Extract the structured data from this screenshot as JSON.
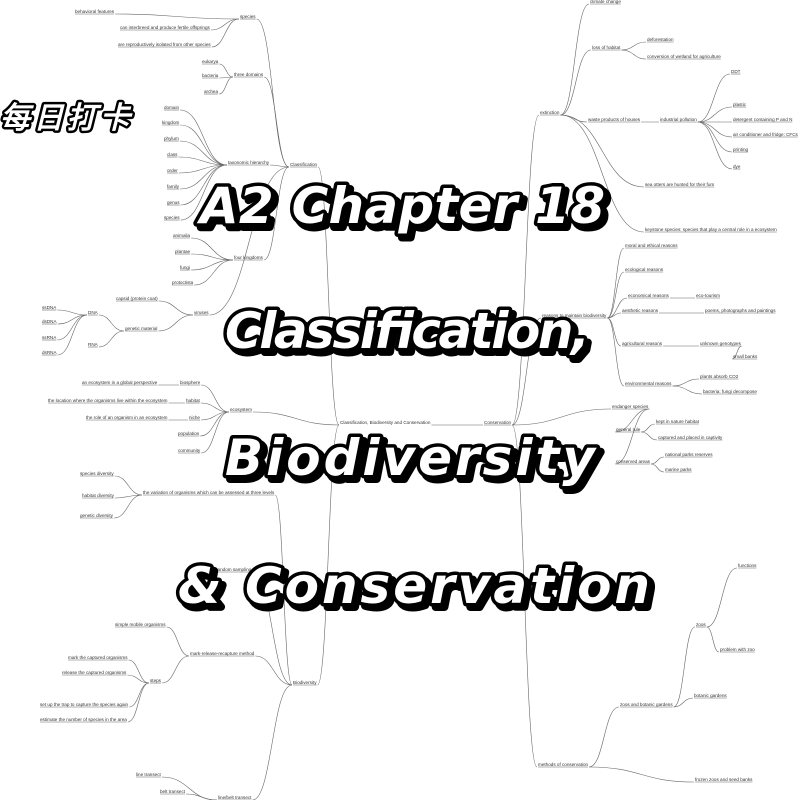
{
  "badge": "每日打卡",
  "title_lines": [
    "A2 Chapter 18",
    "Classification,",
    "Biodiversity",
    "& Conservation"
  ],
  "mindmap": {
    "nodes": [
      "Classification, Biodiversity and Conservation",
      "Classification",
      "Conservation",
      "Biodiversity",
      "species",
      "three domains",
      "taxonomic hierarchy",
      "four kingdoms",
      "viruses",
      "behavioral features",
      "can interbreed and produce fertile offsprings",
      "are reproductively isolated from other species",
      "eukarya",
      "bacteria",
      "archea",
      "domain",
      "kingdom",
      "phylum",
      "class",
      "order",
      "family",
      "genus",
      "species",
      "animalia",
      "plantae",
      "fungi",
      "protoctista",
      "capsid (protein coat)",
      "genetic material",
      "DNA",
      "RNA",
      "ssDNA",
      "dsDNA",
      "ssRNA",
      "dsRNA",
      "ecosystem",
      "biosphere",
      "habitat",
      "niche",
      "population",
      "community",
      "an ecosystem in a global perspective",
      "the location where the organisms live within the ecosystem",
      "the role of an organism in an ecosystem",
      "the variation of organisms which can be assessed at three levels",
      "species diversity",
      "habitat diversity",
      "genetic diversity",
      "random sampling",
      "mark-release-recapture method",
      "simple mobile organisms",
      "steps",
      "mark the captured organisms",
      "release the captured organisms",
      "set up the trap to capture the species again",
      "estimate the number of species in the area",
      "line/belt transect",
      "line transect",
      "belt transect",
      "extinction",
      "reasons to maintain biodiversity",
      "endanger species",
      "methods of conservation",
      "climate change",
      "loss of habitat",
      "waste products of houses",
      "deforestation",
      "conversion of wetland for agriculture",
      "industrial pollution",
      "DDT",
      "plastic",
      "detergent containing P and N",
      "air conditioner and fridge: CFCs",
      "printing",
      "dye",
      "sea otters are hunted for their furs",
      "keystone species: species that play a central role in a ecosystem",
      "moral and ethical reasons",
      "ecological reasons",
      "economical reasons",
      "aesthetic reasons",
      "agricultural reasons",
      "environmental reasons",
      "eco-tourism",
      "poems, photographs and paintings",
      "unknown genotypes",
      "small banks",
      "plants absorb CO2",
      "bacteria: fungi decompose",
      "general rule",
      "conserved areas",
      "kept in nature habitat",
      "captured and placed in captivity",
      "national parks reserves",
      "marine parks",
      "zoos and botanic gardens",
      "zoos",
      "botanic gardens",
      "frozen zoos and seed banks",
      "functions",
      "problem with zoo"
    ]
  }
}
